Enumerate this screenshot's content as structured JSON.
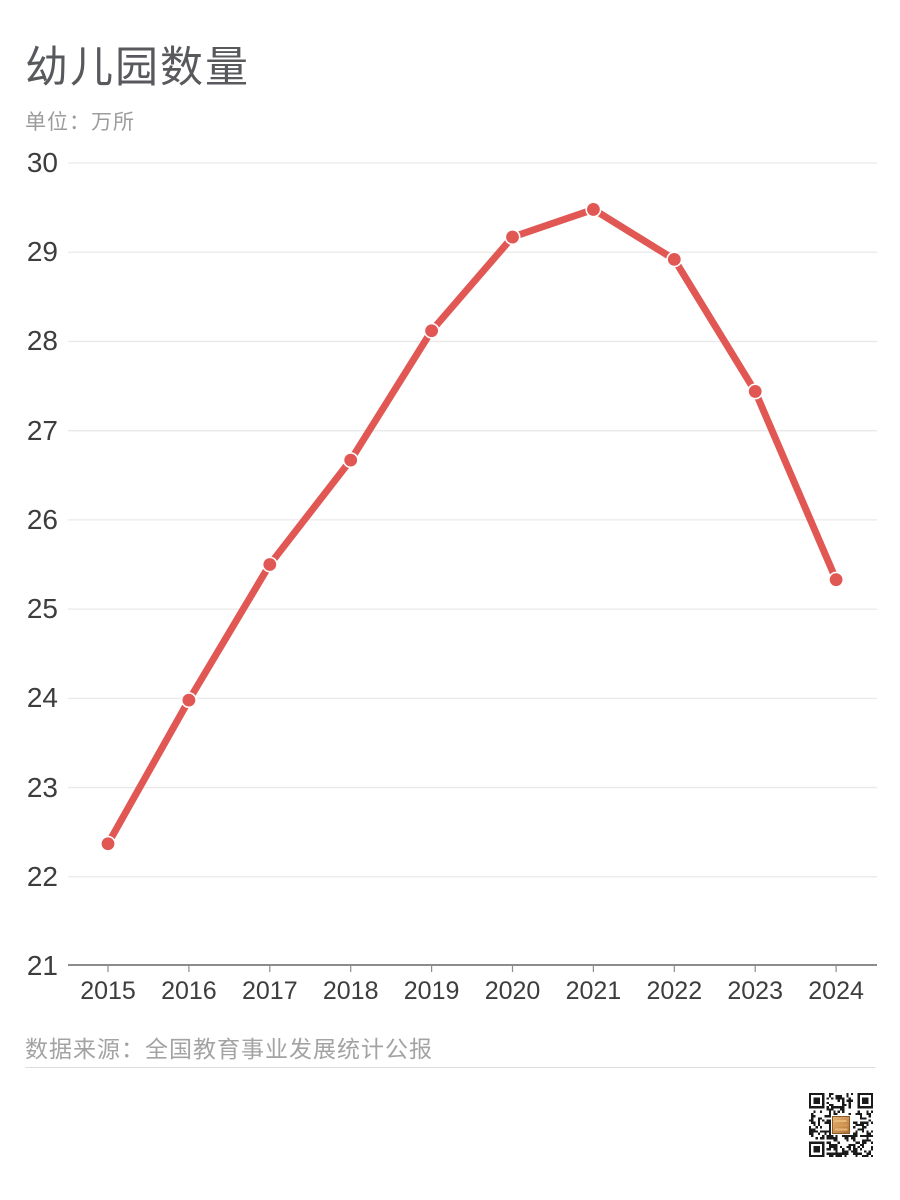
{
  "header": {
    "title": "幼儿园数量",
    "unit_label": "单位：万所"
  },
  "footer": {
    "source": "数据来源：全国教育事业发展统计公报"
  },
  "icons": {
    "qr_code": "qr-code"
  },
  "colors": {
    "background": "#ffffff",
    "title": "#58595d",
    "subtitle": "#9c9c9c",
    "axis_label": "#3d3d3d",
    "gridline": "#e9e9e9",
    "axis_line": "#8c8c8c",
    "tick": "#8c8c8c",
    "accent": "#e15754",
    "marker_ring": "#ffffff",
    "footer_text": "#a3a3a3",
    "divider": "#dddddd",
    "qr_dark": "#1a1a1a",
    "qr_logo_light": "#e8b877",
    "qr_logo_dark": "#b06f35"
  },
  "chart_data": {
    "type": "line",
    "title": "幼儿园数量",
    "unit_label": "单位：万所",
    "x": [
      2015,
      2016,
      2017,
      2018,
      2019,
      2020,
      2021,
      2022,
      2023,
      2024
    ],
    "values": [
      22.37,
      23.98,
      25.5,
      26.67,
      28.12,
      29.17,
      29.48,
      28.92,
      27.44,
      25.33
    ],
    "ylim": [
      21,
      30
    ],
    "yticks": [
      21,
      22,
      23,
      24,
      25,
      26,
      27,
      28,
      29,
      30
    ],
    "grid": true,
    "legend_position": "none",
    "line_color": "#e15754",
    "marker": "circle",
    "marker_color": "#e15754",
    "xlabel": "",
    "ylabel": "万所",
    "source": "数据来源：全国教育事业发展统计公报"
  }
}
